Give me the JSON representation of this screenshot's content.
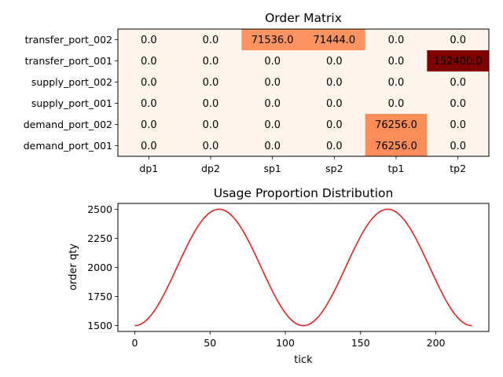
{
  "chart_data": [
    {
      "type": "heatmap",
      "title": "Order Matrix",
      "x_categories": [
        "dp1",
        "dp2",
        "sp1",
        "sp2",
        "tp1",
        "tp2"
      ],
      "y_categories": [
        "transfer_port_002",
        "transfer_port_001",
        "supply_port_002",
        "supply_port_001",
        "demand_port_002",
        "demand_port_001"
      ],
      "values": [
        [
          0.0,
          0.0,
          71536.0,
          71444.0,
          0.0,
          0.0
        ],
        [
          0.0,
          0.0,
          0.0,
          0.0,
          0.0,
          152400.0
        ],
        [
          0.0,
          0.0,
          0.0,
          0.0,
          0.0,
          0.0
        ],
        [
          0.0,
          0.0,
          0.0,
          0.0,
          0.0,
          0.0
        ],
        [
          0.0,
          0.0,
          0.0,
          0.0,
          76256.0,
          0.0
        ],
        [
          0.0,
          0.0,
          0.0,
          0.0,
          76256.0,
          0.0
        ]
      ],
      "colormap": "OrRd",
      "colors": {
        "zero": "#fff5eb",
        "mid": "#fc8d59",
        "max": "#7f0000"
      }
    },
    {
      "type": "line",
      "title": "Usage Proportion Distribution",
      "xlabel": "tick",
      "ylabel": "order qty",
      "xlim": [
        -11.2,
        235.2
      ],
      "ylim": [
        1450,
        2550
      ],
      "xticks": [
        0,
        50,
        100,
        150,
        200
      ],
      "yticks": [
        1500,
        1750,
        2000,
        2250,
        2500
      ],
      "series": [
        {
          "color": "#d62728",
          "function": "2000 - 500*cos(2*pi*x/112)",
          "x_range": [
            0,
            224
          ],
          "points": [
            [
              0,
              1500
            ],
            [
              14,
              1646
            ],
            [
              28,
              2000
            ],
            [
              42,
              2354
            ],
            [
              56,
              2500
            ],
            [
              70,
              2354
            ],
            [
              84,
              2000
            ],
            [
              98,
              1646
            ],
            [
              112,
              1500
            ],
            [
              126,
              1646
            ],
            [
              140,
              2000
            ],
            [
              154,
              2354
            ],
            [
              168,
              2500
            ],
            [
              182,
              2354
            ],
            [
              196,
              2000
            ],
            [
              210,
              1646
            ],
            [
              224,
              1500
            ]
          ]
        }
      ]
    }
  ]
}
